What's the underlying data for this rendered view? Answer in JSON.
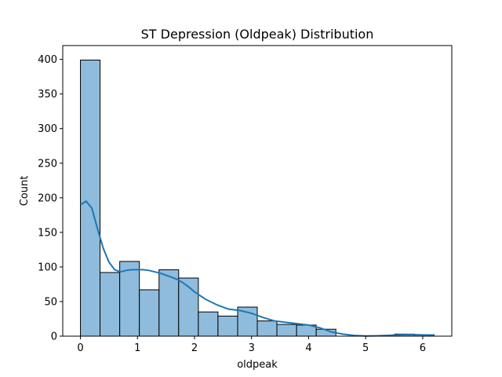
{
  "chart_data": {
    "type": "bar",
    "title": "ST Depression (Oldpeak) Distribution",
    "xlabel": "oldpeak",
    "ylabel": "Count",
    "xlim": [
      -0.31,
      6.51
    ],
    "ylim": [
      0,
      420
    ],
    "xticks": [
      0,
      1,
      2,
      3,
      4,
      5,
      6
    ],
    "yticks": [
      0,
      50,
      100,
      150,
      200,
      250,
      300,
      350,
      400
    ],
    "grid": false,
    "bins": [
      {
        "x0": 0.0,
        "x1": 0.344,
        "count": 399
      },
      {
        "x0": 0.344,
        "x1": 0.689,
        "count": 92
      },
      {
        "x0": 0.689,
        "x1": 1.033,
        "count": 108
      },
      {
        "x0": 1.033,
        "x1": 1.378,
        "count": 67
      },
      {
        "x0": 1.378,
        "x1": 1.722,
        "count": 96
      },
      {
        "x0": 1.722,
        "x1": 2.067,
        "count": 84
      },
      {
        "x0": 2.067,
        "x1": 2.411,
        "count": 35
      },
      {
        "x0": 2.411,
        "x1": 2.756,
        "count": 29
      },
      {
        "x0": 2.756,
        "x1": 3.1,
        "count": 42
      },
      {
        "x0": 3.1,
        "x1": 3.444,
        "count": 22
      },
      {
        "x0": 3.444,
        "x1": 3.789,
        "count": 17
      },
      {
        "x0": 3.789,
        "x1": 4.133,
        "count": 16
      },
      {
        "x0": 4.133,
        "x1": 4.478,
        "count": 10
      },
      {
        "x0": 4.478,
        "x1": 4.822,
        "count": 0
      },
      {
        "x0": 4.822,
        "x1": 5.167,
        "count": 0
      },
      {
        "x0": 5.167,
        "x1": 5.511,
        "count": 0
      },
      {
        "x0": 5.511,
        "x1": 5.856,
        "count": 3
      },
      {
        "x0": 5.856,
        "x1": 6.2,
        "count": 2
      }
    ],
    "kde": {
      "x": [
        0.0,
        0.1,
        0.2,
        0.3,
        0.4,
        0.5,
        0.6,
        0.7,
        0.8,
        0.9,
        1.0,
        1.1,
        1.2,
        1.3,
        1.4,
        1.5,
        1.6,
        1.7,
        1.8,
        1.9,
        2.0,
        2.2,
        2.4,
        2.6,
        2.8,
        3.0,
        3.2,
        3.4,
        3.6,
        3.8,
        4.0,
        4.2,
        4.4,
        4.6,
        4.8,
        5.0,
        5.2,
        5.4,
        5.6,
        5.8,
        6.0,
        6.2
      ],
      "y": [
        190,
        195,
        185,
        155,
        127,
        107,
        96,
        93,
        95,
        96,
        96,
        96,
        95,
        93,
        91,
        88,
        85,
        82,
        77,
        71,
        64,
        53,
        45,
        39,
        37,
        33,
        27,
        22,
        20,
        18,
        16,
        12,
        6,
        3,
        1,
        0.3,
        0.5,
        1.2,
        2.0,
        2.2,
        1.8,
        1.5
      ]
    },
    "colors": {
      "bar_fill": "#8fbcdc",
      "bar_edge": "#000000",
      "kde_line": "#1f77b4",
      "axes": "#000000"
    }
  }
}
